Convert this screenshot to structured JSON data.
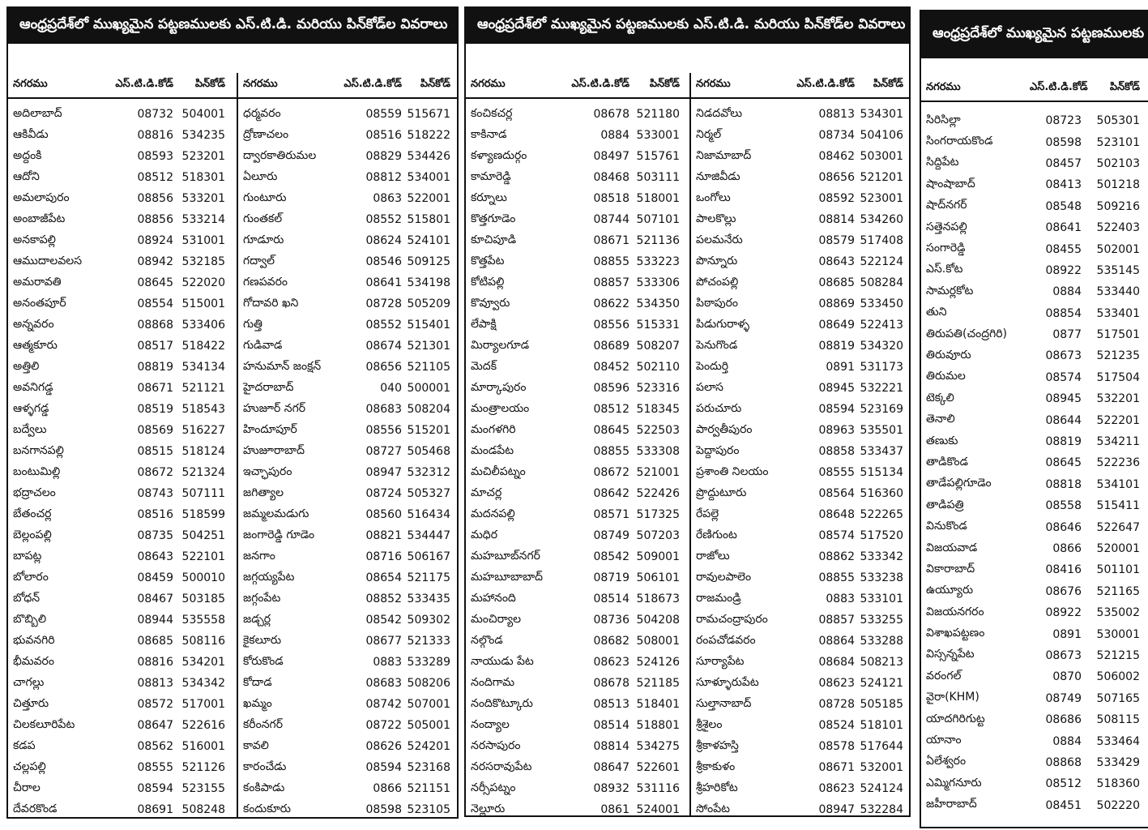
{
  "title": "ఆంధ్రప్రదేశ్‌లో ముఖ్యమైన పట్టణములకు ఎస్.టి.డి. మరియు పిన్‌కోడ్‌ల వివరాలు",
  "headers": {
    "city": "నగరము",
    "std": "ఎస్.టి.డి.కోడ్",
    "pin": "పిన్‌కోడ్"
  },
  "panels": [
    {
      "tables": [
        {
          "rows": [
            [
              "అదిలాబాద్",
              "08732",
              "504001"
            ],
            [
              "ఆకివీడు",
              "08816",
              "534235"
            ],
            [
              "అద్దంకి",
              "08593",
              "523201"
            ],
            [
              "ఆదోని",
              "08512",
              "518301"
            ],
            [
              "అమలాపురం",
              "08856",
              "533201"
            ],
            [
              "అంబాజీపేట",
              "08856",
              "533214"
            ],
            [
              "అనకాపల్లి",
              "08924",
              "531001"
            ],
            [
              "ఆముదాలవలస",
              "08942",
              "532185"
            ],
            [
              "అమరావతి",
              "08645",
              "522020"
            ],
            [
              "అనంతపూర్",
              "08554",
              "515001"
            ],
            [
              "అన్నవరం",
              "08868",
              "533406"
            ],
            [
              "ఆత్మకూరు",
              "08517",
              "518422"
            ],
            [
              "అత్తిలి",
              "08819",
              "534134"
            ],
            [
              "అవనిగడ్డ",
              "08671",
              "521121"
            ],
            [
              "ఆళ్ళగడ్డ",
              "08519",
              "518543"
            ],
            [
              "బద్వేలు",
              "08569",
              "516227"
            ],
            [
              "బనగానపల్లి",
              "08515",
              "518124"
            ],
            [
              "బంటుమిల్లి",
              "08672",
              "521324"
            ],
            [
              "భద్రాచలం",
              "08743",
              "507111"
            ],
            [
              "బేతంచర్ల",
              "08516",
              "518599"
            ],
            [
              "బెల్లంపల్లి",
              "08735",
              "504251"
            ],
            [
              "బాపట్ల",
              "08643",
              "522101"
            ],
            [
              "బోలారం",
              "08459",
              "500010"
            ],
            [
              "బోధన్",
              "08467",
              "503185"
            ],
            [
              "బొబ్బిలి",
              "08944",
              "535558"
            ],
            [
              "భువనగిరి",
              "08685",
              "508116"
            ],
            [
              "భీమవరం",
              "08816",
              "534201"
            ],
            [
              "చాగల్లు",
              "08813",
              "534342"
            ],
            [
              "చిత్తూరు",
              "08572",
              "517001"
            ],
            [
              "చిలకలూరిపేట",
              "08647",
              "522616"
            ],
            [
              "కడప",
              "08562",
              "516001"
            ],
            [
              "చల్లపల్లి",
              "08555",
              "521126"
            ],
            [
              "చీరాల",
              "08594",
              "523155"
            ],
            [
              "దేవరకొండ",
              "08691",
              "508248"
            ]
          ]
        },
        {
          "rows": [
            [
              "ధర్మవరం",
              "08559",
              "515671"
            ],
            [
              "ద్రోణాచలం",
              "08516",
              "518222"
            ],
            [
              "ద్వారకాతిరుమల",
              "08829",
              "534426"
            ],
            [
              "ఏలూరు",
              "08812",
              "534001"
            ],
            [
              "గుంటూరు",
              "0863",
              "522001"
            ],
            [
              "గుంతకల్",
              "08552",
              "515801"
            ],
            [
              "గూడూరు",
              "08624",
              "524101"
            ],
            [
              "గద్వాల్",
              "08546",
              "509125"
            ],
            [
              "గణపవరం",
              "08641",
              "534198"
            ],
            [
              "గోదావరి ఖని",
              "08728",
              "505209"
            ],
            [
              "గుత్తి",
              "08552",
              "515401"
            ],
            [
              "గుడివాడ",
              "08674",
              "521301"
            ],
            [
              "హనుమాన్ జంక్షన్",
              "08656",
              "521105"
            ],
            [
              "హైదరాబాద్",
              "040",
              "500001"
            ],
            [
              "హుజూర్ నగర్",
              "08683",
              "508204"
            ],
            [
              "హిందూపూర్",
              "08556",
              "515201"
            ],
            [
              "హుజూరాబాద్",
              "08727",
              "505468"
            ],
            [
              "ఇచ్ఛాపురం",
              "08947",
              "532312"
            ],
            [
              "జగిత్యాల",
              "08724",
              "505327"
            ],
            [
              "జమ్మలమడుగు",
              "08560",
              "516434"
            ],
            [
              "జంగారెడ్డి గూడెం",
              "08821",
              "534447"
            ],
            [
              "జనగాం",
              "08716",
              "506167"
            ],
            [
              "జగ్గయ్యపేట",
              "08654",
              "521175"
            ],
            [
              "జగ్గంపేట",
              "08852",
              "533435"
            ],
            [
              "జడ్చర్ల",
              "08542",
              "509302"
            ],
            [
              "కైకలూరు",
              "08677",
              "521333"
            ],
            [
              "కోరుకొండ",
              "0883",
              "533289"
            ],
            [
              "కోదాడ",
              "08683",
              "508206"
            ],
            [
              "ఖమ్మం",
              "08742",
              "507001"
            ],
            [
              "కరీంనగర్",
              "08722",
              "505001"
            ],
            [
              "కావలి",
              "08626",
              "524201"
            ],
            [
              "కారంచేడు",
              "08594",
              "523168"
            ],
            [
              "కంకిపాడు",
              "0866",
              "521151"
            ],
            [
              "కందుకూరు",
              "08598",
              "523105"
            ]
          ]
        }
      ]
    },
    {
      "tables": [
        {
          "rows": [
            [
              "కంచికచర్ల",
              "08678",
              "521180"
            ],
            [
              "కాకినాడ",
              "0884",
              "533001"
            ],
            [
              "కళ్యాణదుర్గం",
              "08497",
              "515761"
            ],
            [
              "కామారెడ్డి",
              "08468",
              "503111"
            ],
            [
              "కర్నూలు",
              "08518",
              "518001"
            ],
            [
              "కొత్తగూడెం",
              "08744",
              "507101"
            ],
            [
              "కూచిపూడి",
              "08671",
              "521136"
            ],
            [
              "కొత్తపేట",
              "08855",
              "533223"
            ],
            [
              "కోటిపల్లి",
              "08857",
              "533306"
            ],
            [
              "కొవ్వూరు",
              "08622",
              "534350"
            ],
            [
              "లేపాక్షి",
              "08556",
              "515331"
            ],
            [
              "మిర్యాలగూడ",
              "08689",
              "508207"
            ],
            [
              "మెదక్",
              "08452",
              "502110"
            ],
            [
              "మార్కాపురం",
              "08596",
              "523316"
            ],
            [
              "మంత్రాలయం",
              "08512",
              "518345"
            ],
            [
              "మంగళగిరి",
              "08645",
              "522503"
            ],
            [
              "మండపేట",
              "08855",
              "533308"
            ],
            [
              "మచిలీపట్నం",
              "08672",
              "521001"
            ],
            [
              "మాచర్ల",
              "08642",
              "522426"
            ],
            [
              "మదనపల్లి",
              "08571",
              "517325"
            ],
            [
              "మధిర",
              "08749",
              "507203"
            ],
            [
              "మహబూబ్‌నగర్",
              "08542",
              "509001"
            ],
            [
              "మహబూబాబాద్",
              "08719",
              "506101"
            ],
            [
              "మహానంది",
              "08514",
              "518673"
            ],
            [
              "మంచిర్యాల",
              "08736",
              "504208"
            ],
            [
              "నల్గొండ",
              "08682",
              "508001"
            ],
            [
              "నాయుడు పేట",
              "08623",
              "524126"
            ],
            [
              "నందిగామ",
              "08678",
              "521185"
            ],
            [
              "నందికొట్కూరు",
              "08513",
              "518401"
            ],
            [
              "నంద్యాల",
              "08514",
              "518801"
            ],
            [
              "నరసాపురం",
              "08814",
              "534275"
            ],
            [
              "నరసరావుపేట",
              "08647",
              "522601"
            ],
            [
              "నర్సీపట్నం",
              "08932",
              "531116"
            ],
            [
              "నెల్లూరు",
              "0861",
              "524001"
            ]
          ]
        },
        {
          "rows": [
            [
              "నిడదవోలు",
              "08813",
              "534301"
            ],
            [
              "నిర్మల్",
              "08734",
              "504106"
            ],
            [
              "నిజామాబాద్",
              "08462",
              "503001"
            ],
            [
              "నూజివీడు",
              "08656",
              "521201"
            ],
            [
              "ఒంగోలు",
              "08592",
              "523001"
            ],
            [
              "పాలకొల్లు",
              "08814",
              "534260"
            ],
            [
              "పలమనేరు",
              "08579",
              "517408"
            ],
            [
              "పొన్నూరు",
              "08643",
              "522124"
            ],
            [
              "పోచంపల్లి",
              "08685",
              "508284"
            ],
            [
              "పిఠాపురం",
              "08869",
              "533450"
            ],
            [
              "పిడుగురాళ్ళ",
              "08649",
              "522413"
            ],
            [
              "పెనుగొండ",
              "08819",
              "534320"
            ],
            [
              "పెందుర్తి",
              "0891",
              "531173"
            ],
            [
              "పలాస",
              "08945",
              "532221"
            ],
            [
              "పరుచూరు",
              "08594",
              "523169"
            ],
            [
              "పార్వతీపురం",
              "08963",
              "535501"
            ],
            [
              "పెద్దాపురం",
              "08858",
              "533437"
            ],
            [
              "ప్రశాంతి నిలయం",
              "08555",
              "515134"
            ],
            [
              "ప్రొద్దుటూరు",
              "08564",
              "516360"
            ],
            [
              "రేపల్లె",
              "08648",
              "522265"
            ],
            [
              "రేణిగుంట",
              "08574",
              "517520"
            ],
            [
              "రాజోలు",
              "08862",
              "533342"
            ],
            [
              "రావులపాలెం",
              "08855",
              "533238"
            ],
            [
              "రాజమండ్రి",
              "0883",
              "533101"
            ],
            [
              "రామచంద్రాపురం",
              "08857",
              "533255"
            ],
            [
              "రంపచోడవరం",
              "08864",
              "533288"
            ],
            [
              "సూర్యాపేట",
              "08684",
              "508213"
            ],
            [
              "సూళ్ళూరుపేట",
              "08623",
              "524121"
            ],
            [
              "సుల్తానాబాద్",
              "08728",
              "505185"
            ],
            [
              "శ్రీశైలం",
              "08524",
              "518101"
            ],
            [
              "శ్రీకాళహస్తి",
              "08578",
              "517644"
            ],
            [
              "శ్రీకాకుళం",
              "08671",
              "532001"
            ],
            [
              "శ్రీహరికోట",
              "08623",
              "524124"
            ],
            [
              "సోంపేట",
              "08947",
              "532284"
            ]
          ]
        }
      ]
    },
    {
      "tables": [
        {
          "rows": [
            [
              "సిరిసిల్లా",
              "08723",
              "505301"
            ],
            [
              "సింగరాయకొండ",
              "08598",
              "523101"
            ],
            [
              "సిద్దిపేట",
              "08457",
              "502103"
            ],
            [
              "షాంషాబాద్",
              "08413",
              "501218"
            ],
            [
              "షాద్‌నగర్",
              "08548",
              "509216"
            ],
            [
              "సత్తెనపల్లి",
              "08641",
              "522403"
            ],
            [
              "సంగారెడ్డి",
              "08455",
              "502001"
            ],
            [
              "ఎస్.కోట",
              "08922",
              "535145"
            ],
            [
              "సామర్లకోట",
              "0884",
              "533440"
            ],
            [
              "తుని",
              "08854",
              "533401"
            ],
            [
              "తిరుపతి(చంద్రగిరి)",
              "0877",
              "517501"
            ],
            [
              "తిరువూరు",
              "08673",
              "521235"
            ],
            [
              "తిరుమల",
              "08574",
              "517504"
            ],
            [
              "టెక్కలి",
              "08945",
              "532201"
            ],
            [
              "తెనాలి",
              "08644",
              "522201"
            ],
            [
              "తణుకు",
              "08819",
              "534211"
            ],
            [
              "తాడికొండ",
              "08645",
              "522236"
            ],
            [
              "తాడేపల్లిగూడెం",
              "08818",
              "534101"
            ],
            [
              "తాడిపత్రి",
              "08558",
              "515411"
            ],
            [
              "వినుకొండ",
              "08646",
              "522647"
            ],
            [
              "విజయవాడ",
              "0866",
              "520001"
            ],
            [
              "వికారాబాద్",
              "08416",
              "501101"
            ],
            [
              "ఉయ్యూరు",
              "08676",
              "521165"
            ],
            [
              "విజయనగరం",
              "08922",
              "535002"
            ],
            [
              "విశాఖపట్టణం",
              "0891",
              "530001"
            ],
            [
              "విస్సన్నపేట",
              "08673",
              "521215"
            ],
            [
              "వరంగల్",
              "0870",
              "506002"
            ],
            [
              "వైరా(KHM)",
              "08749",
              "507165"
            ],
            [
              "యాదగిరిగుట్ట",
              "08686",
              "508115"
            ],
            [
              "యానాం",
              "0884",
              "533464"
            ],
            [
              "ఏలేశ్వరం",
              "08868",
              "533429"
            ],
            [
              "ఎమ్మిగనూరు",
              "08512",
              "518360"
            ],
            [
              "జహీరాబాద్",
              "08451",
              "502220"
            ]
          ]
        }
      ]
    }
  ]
}
